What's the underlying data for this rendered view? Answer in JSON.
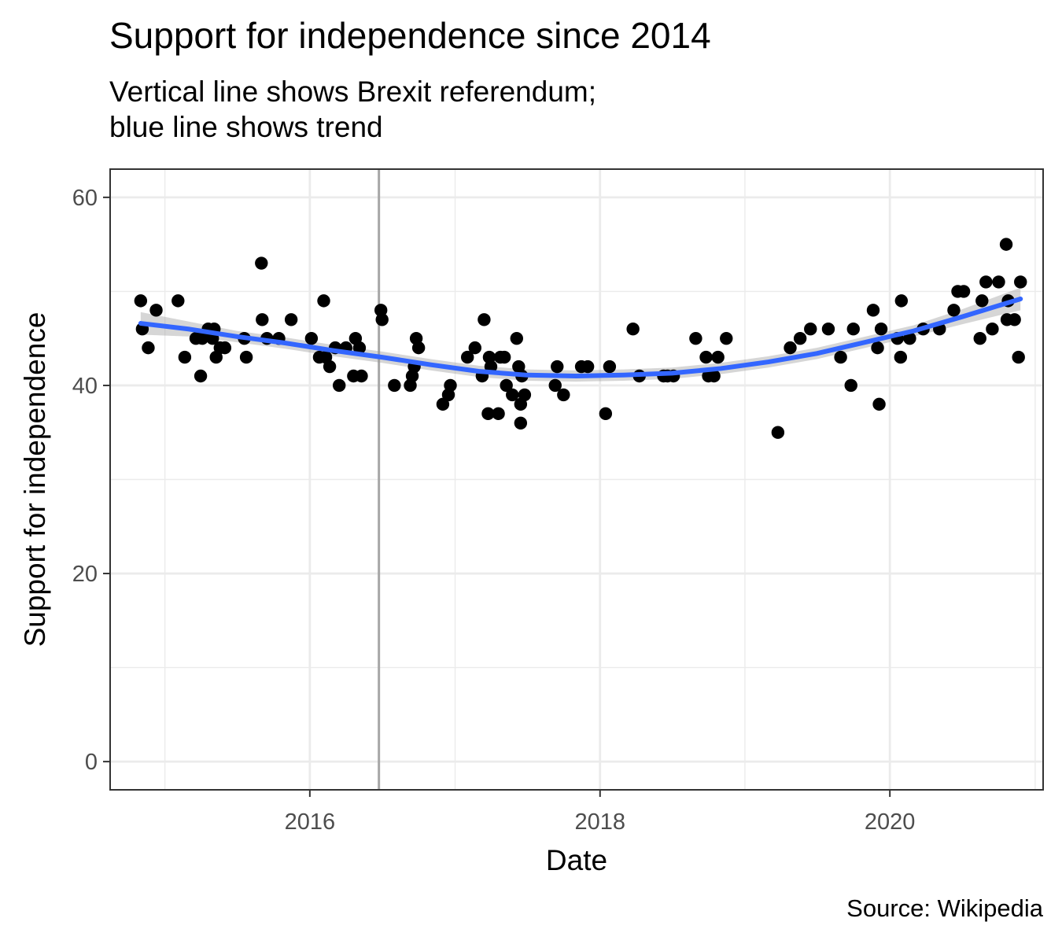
{
  "chart_data": {
    "type": "scatter",
    "title": "Support for independence since 2014",
    "subtitle_lines": [
      "Vertical line shows Brexit referendum;",
      "blue line shows trend"
    ],
    "caption": "Source: Wikipedia",
    "xlabel": "Date",
    "ylabel": "Support for independence",
    "xlim": [
      "2014-08-16",
      "2021-01-21"
    ],
    "ylim": [
      -3,
      63
    ],
    "x_ticks": [
      {
        "date": "2016-01-01",
        "label": "2016"
      },
      {
        "date": "2018-01-01",
        "label": "2018"
      },
      {
        "date": "2020-01-01",
        "label": "2020"
      }
    ],
    "x_minor_ticks": [
      "2015-01-01",
      "2017-01-01",
      "2019-01-01",
      "2021-01-01"
    ],
    "y_ticks": [
      {
        "value": 0,
        "label": "0"
      },
      {
        "value": 20,
        "label": "20"
      },
      {
        "value": 40,
        "label": "40"
      },
      {
        "value": 60,
        "label": "60"
      }
    ],
    "y_minor_ticks": [
      10,
      30,
      50
    ],
    "grid": true,
    "reference_line": {
      "date": "2016-06-23",
      "color": "#a6a6a6"
    },
    "colors": {
      "points": "#000000",
      "trend": "#3366ff",
      "band": "#999999",
      "grid": "#ebebeb",
      "panel_border": "#333333"
    },
    "points": [
      {
        "x": "2014-11-01",
        "y": 49
      },
      {
        "x": "2014-11-05",
        "y": 46
      },
      {
        "x": "2014-11-20",
        "y": 44
      },
      {
        "x": "2014-12-10",
        "y": 48
      },
      {
        "x": "2015-02-03",
        "y": 49
      },
      {
        "x": "2015-02-20",
        "y": 43
      },
      {
        "x": "2015-03-20",
        "y": 45
      },
      {
        "x": "2015-04-01",
        "y": 41
      },
      {
        "x": "2015-04-05",
        "y": 45
      },
      {
        "x": "2015-04-20",
        "y": 46
      },
      {
        "x": "2015-05-01",
        "y": 45
      },
      {
        "x": "2015-05-05",
        "y": 46
      },
      {
        "x": "2015-05-10",
        "y": 43
      },
      {
        "x": "2015-05-20",
        "y": 44
      },
      {
        "x": "2015-06-01",
        "y": 44
      },
      {
        "x": "2015-07-20",
        "y": 45
      },
      {
        "x": "2015-07-25",
        "y": 43
      },
      {
        "x": "2015-09-01",
        "y": 53
      },
      {
        "x": "2015-09-03",
        "y": 47
      },
      {
        "x": "2015-09-15",
        "y": 45
      },
      {
        "x": "2015-10-15",
        "y": 45
      },
      {
        "x": "2015-11-15",
        "y": 47
      },
      {
        "x": "2016-01-05",
        "y": 45
      },
      {
        "x": "2016-01-25",
        "y": 43
      },
      {
        "x": "2016-02-05",
        "y": 49
      },
      {
        "x": "2016-02-10",
        "y": 43
      },
      {
        "x": "2016-02-20",
        "y": 42
      },
      {
        "x": "2016-03-05",
        "y": 44
      },
      {
        "x": "2016-03-15",
        "y": 40
      },
      {
        "x": "2016-04-01",
        "y": 44
      },
      {
        "x": "2016-04-20",
        "y": 41
      },
      {
        "x": "2016-04-25",
        "y": 45
      },
      {
        "x": "2016-05-10",
        "y": 41
      },
      {
        "x": "2016-05-05",
        "y": 44
      },
      {
        "x": "2016-06-28",
        "y": 48
      },
      {
        "x": "2016-07-01",
        "y": 47
      },
      {
        "x": "2016-08-01",
        "y": 40
      },
      {
        "x": "2016-09-10",
        "y": 40
      },
      {
        "x": "2016-09-15",
        "y": 41
      },
      {
        "x": "2016-09-20",
        "y": 42
      },
      {
        "x": "2016-09-25",
        "y": 45
      },
      {
        "x": "2016-10-01",
        "y": 44
      },
      {
        "x": "2016-12-01",
        "y": 38
      },
      {
        "x": "2016-12-15",
        "y": 39
      },
      {
        "x": "2016-12-20",
        "y": 40
      },
      {
        "x": "2017-02-01",
        "y": 43
      },
      {
        "x": "2017-02-20",
        "y": 44
      },
      {
        "x": "2017-03-10",
        "y": 41
      },
      {
        "x": "2017-03-15",
        "y": 47
      },
      {
        "x": "2017-03-25",
        "y": 37
      },
      {
        "x": "2017-03-28",
        "y": 43
      },
      {
        "x": "2017-04-01",
        "y": 42
      },
      {
        "x": "2017-04-20",
        "y": 37
      },
      {
        "x": "2017-04-25",
        "y": 43
      },
      {
        "x": "2017-05-05",
        "y": 43
      },
      {
        "x": "2017-05-10",
        "y": 40
      },
      {
        "x": "2017-05-25",
        "y": 39
      },
      {
        "x": "2017-06-05",
        "y": 45
      },
      {
        "x": "2017-06-10",
        "y": 42
      },
      {
        "x": "2017-06-15",
        "y": 38
      },
      {
        "x": "2017-06-15",
        "y": 36
      },
      {
        "x": "2017-06-18",
        "y": 41
      },
      {
        "x": "2017-06-25",
        "y": 39
      },
      {
        "x": "2017-09-10",
        "y": 40
      },
      {
        "x": "2017-09-15",
        "y": 42
      },
      {
        "x": "2017-10-01",
        "y": 39
      },
      {
        "x": "2017-11-15",
        "y": 42
      },
      {
        "x": "2017-12-01",
        "y": 42
      },
      {
        "x": "2018-01-15",
        "y": 37
      },
      {
        "x": "2018-01-25",
        "y": 42
      },
      {
        "x": "2018-03-25",
        "y": 46
      },
      {
        "x": "2018-04-10",
        "y": 41
      },
      {
        "x": "2018-06-10",
        "y": 41
      },
      {
        "x": "2018-06-20",
        "y": 41
      },
      {
        "x": "2018-07-05",
        "y": 41
      },
      {
        "x": "2018-08-30",
        "y": 45
      },
      {
        "x": "2018-09-25",
        "y": 43
      },
      {
        "x": "2018-10-01",
        "y": 41
      },
      {
        "x": "2018-10-15",
        "y": 41
      },
      {
        "x": "2018-10-25",
        "y": 43
      },
      {
        "x": "2018-11-15",
        "y": 45
      },
      {
        "x": "2019-03-25",
        "y": 35
      },
      {
        "x": "2019-04-25",
        "y": 44
      },
      {
        "x": "2019-05-20",
        "y": 45
      },
      {
        "x": "2019-06-15",
        "y": 46
      },
      {
        "x": "2019-07-30",
        "y": 46
      },
      {
        "x": "2019-08-30",
        "y": 43
      },
      {
        "x": "2019-09-25",
        "y": 40
      },
      {
        "x": "2019-10-01",
        "y": 46
      },
      {
        "x": "2019-11-20",
        "y": 48
      },
      {
        "x": "2019-12-01",
        "y": 44
      },
      {
        "x": "2019-12-05",
        "y": 38
      },
      {
        "x": "2019-12-10",
        "y": 46
      },
      {
        "x": "2020-01-20",
        "y": 45
      },
      {
        "x": "2020-01-30",
        "y": 49
      },
      {
        "x": "2020-01-28",
        "y": 43
      },
      {
        "x": "2020-02-20",
        "y": 45
      },
      {
        "x": "2020-03-25",
        "y": 46
      },
      {
        "x": "2020-05-05",
        "y": 46
      },
      {
        "x": "2020-06-10",
        "y": 48
      },
      {
        "x": "2020-06-20",
        "y": 50
      },
      {
        "x": "2020-07-05",
        "y": 50
      },
      {
        "x": "2020-08-15",
        "y": 45
      },
      {
        "x": "2020-08-20",
        "y": 49
      },
      {
        "x": "2020-08-30",
        "y": 51
      },
      {
        "x": "2020-09-15",
        "y": 46
      },
      {
        "x": "2020-10-01",
        "y": 51
      },
      {
        "x": "2020-10-20",
        "y": 55
      },
      {
        "x": "2020-10-22",
        "y": 47
      },
      {
        "x": "2020-10-25",
        "y": 49
      },
      {
        "x": "2020-11-10",
        "y": 47
      },
      {
        "x": "2020-11-20",
        "y": 43
      },
      {
        "x": "2020-11-25",
        "y": 51
      }
    ],
    "trend": [
      {
        "x": "2014-11-01",
        "y": 46.6,
        "se": 1.2
      },
      {
        "x": "2015-03-01",
        "y": 46.0,
        "se": 0.8
      },
      {
        "x": "2015-07-01",
        "y": 45.2,
        "se": 0.6
      },
      {
        "x": "2015-11-01",
        "y": 44.5,
        "se": 0.6
      },
      {
        "x": "2016-03-01",
        "y": 43.7,
        "se": 0.6
      },
      {
        "x": "2016-07-01",
        "y": 43.0,
        "se": 0.6
      },
      {
        "x": "2016-11-01",
        "y": 42.2,
        "se": 0.6
      },
      {
        "x": "2017-03-01",
        "y": 41.5,
        "se": 0.6
      },
      {
        "x": "2017-07-01",
        "y": 41.1,
        "se": 0.6
      },
      {
        "x": "2017-11-01",
        "y": 41.0,
        "se": 0.6
      },
      {
        "x": "2018-03-01",
        "y": 41.1,
        "se": 0.6
      },
      {
        "x": "2018-07-01",
        "y": 41.3,
        "se": 0.6
      },
      {
        "x": "2018-11-01",
        "y": 41.8,
        "se": 0.6
      },
      {
        "x": "2019-03-01",
        "y": 42.5,
        "se": 0.6
      },
      {
        "x": "2019-07-01",
        "y": 43.4,
        "se": 0.6
      },
      {
        "x": "2019-11-01",
        "y": 44.6,
        "se": 0.6
      },
      {
        "x": "2020-03-01",
        "y": 45.8,
        "se": 0.6
      },
      {
        "x": "2020-07-01",
        "y": 47.3,
        "se": 0.8
      },
      {
        "x": "2020-11-25",
        "y": 49.2,
        "se": 1.2
      }
    ]
  }
}
